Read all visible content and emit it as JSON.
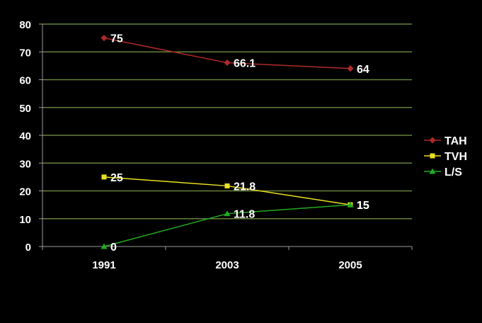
{
  "colors": {
    "background": "#000000",
    "plot_area": "#000000",
    "gridline": "#66803a",
    "axis": "#9a9a9a",
    "text": "#ffffff"
  },
  "chart_data": {
    "type": "line",
    "title": "",
    "xlabel": "",
    "ylabel": "",
    "categories": [
      "1991",
      "2003",
      "2005"
    ],
    "ylim": [
      0,
      80
    ],
    "yticks": [
      "0",
      "10",
      "20",
      "30",
      "40",
      "50",
      "60",
      "70",
      "80"
    ],
    "grid": true,
    "legend_position": "right",
    "series": [
      {
        "name": "TAH",
        "values": [
          75,
          66.1,
          64
        ],
        "labels": [
          "75",
          "66.1",
          "64"
        ],
        "color": "#b02a2a",
        "marker": "diamond"
      },
      {
        "name": "TVH",
        "values": [
          25,
          21.8,
          15
        ],
        "labels": [
          "25",
          "21.8",
          "15"
        ],
        "color": "#e8e020",
        "marker": "square"
      },
      {
        "name": "L/S",
        "values": [
          0,
          11.8,
          15
        ],
        "labels": [
          "0",
          "11.8",
          "15"
        ],
        "color": "#22aa22",
        "marker": "triangle"
      }
    ]
  }
}
